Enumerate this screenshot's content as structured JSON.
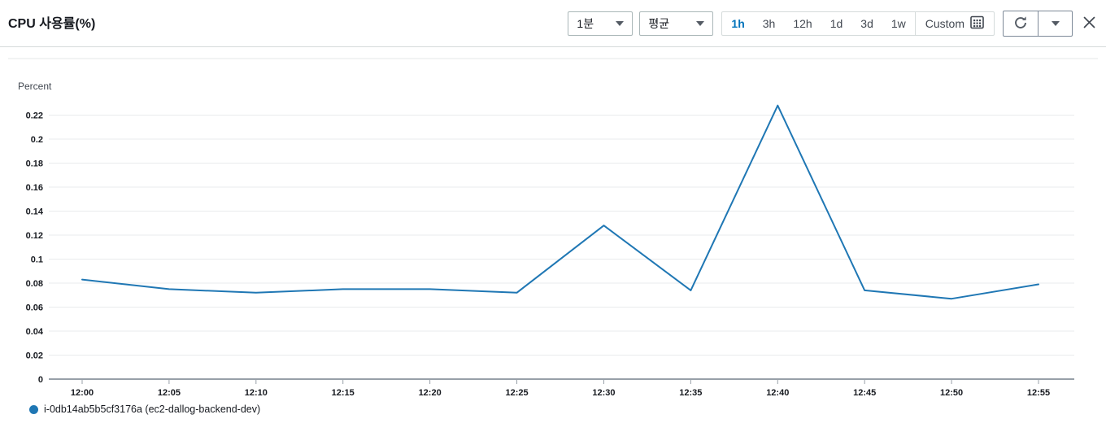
{
  "header": {
    "title": "CPU 사용률(%)",
    "period_select": {
      "value": "1분"
    },
    "stat_select": {
      "value": "평균"
    },
    "time_range": {
      "options": [
        "1h",
        "3h",
        "12h",
        "1d",
        "3d",
        "1w"
      ],
      "active": "1h",
      "custom_label": "Custom"
    }
  },
  "chart_data": {
    "type": "line",
    "title": "CPU 사용률(%)",
    "ylabel": "Percent",
    "x": [
      "12:00",
      "12:05",
      "12:10",
      "12:15",
      "12:20",
      "12:25",
      "12:30",
      "12:35",
      "12:40",
      "12:45",
      "12:50",
      "12:55"
    ],
    "series": [
      {
        "name": "i-0db14ab5b5cf3176a (ec2-dallog-backend-dev)",
        "color": "#1f77b4",
        "values": [
          0.083,
          0.075,
          0.072,
          0.075,
          0.075,
          0.072,
          0.128,
          0.074,
          0.228,
          0.074,
          0.067,
          0.079
        ]
      }
    ],
    "yticks": [
      0,
      0.02,
      0.04,
      0.06,
      0.08,
      0.1,
      0.12,
      0.14,
      0.16,
      0.18,
      0.2,
      0.22
    ],
    "ylim": [
      0,
      0.23
    ],
    "grid": true,
    "legend_position": "bottom"
  },
  "colors": {
    "accent_blue": "#0073bb",
    "line_blue": "#1f77b4",
    "text_dark": "#16191f",
    "grid_line": "#e9ebed",
    "axis_line": "#98a0a8"
  }
}
